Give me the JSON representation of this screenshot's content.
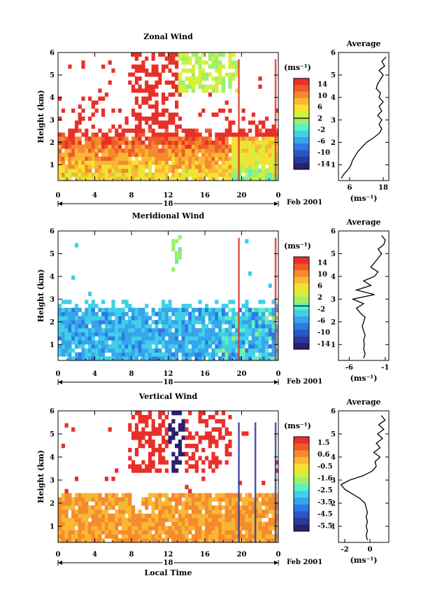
{
  "chart_data": [
    {
      "type": "heatmap",
      "title": "Zonal Wind",
      "xlabel": "",
      "ylabel": "Height (km)",
      "x_ticks": [
        "0",
        "4",
        "8",
        "12",
        "16",
        "20",
        "0"
      ],
      "y_ticks": [
        "1",
        "2",
        "3",
        "4",
        "5",
        "6"
      ],
      "xlim": [
        0,
        24
      ],
      "ylim": [
        0.3,
        6
      ],
      "date_day": "18",
      "date_label": "Feb 2001",
      "colorbar": {
        "unit": "(ms⁻¹)",
        "ticks": [
          "14",
          "10",
          "6",
          "2",
          "-2",
          "-6",
          "-10",
          "-14"
        ],
        "range": [
          -16,
          16
        ],
        "zero_line": 2
      },
      "profile": {
        "title": "Average",
        "xlabel": "(ms⁻¹)",
        "x_ticks": [
          "6",
          "18"
        ],
        "x_tick_values": [
          6,
          18
        ],
        "xlim": [
          2,
          20
        ],
        "y_ticks": [
          "1",
          "2",
          "3",
          "4",
          "5",
          "6"
        ],
        "heights": [
          0.4,
          0.6,
          0.8,
          1.0,
          1.2,
          1.4,
          1.6,
          1.8,
          2.0,
          2.2,
          2.4,
          2.6,
          2.8,
          3.0,
          3.2,
          3.4,
          3.6,
          3.8,
          4.0,
          4.2,
          4.4,
          4.6,
          4.8,
          5.0,
          5.2,
          5.4,
          5.6,
          5.8
        ],
        "values": [
          3.0,
          4.0,
          5.5,
          6.5,
          7.0,
          8.0,
          9.0,
          10.5,
          12.0,
          14.5,
          16.5,
          17.5,
          16.5,
          17.5,
          16.0,
          17.5,
          16.5,
          18.0,
          16.5,
          17.0,
          15.5,
          16.0,
          17.0,
          18.0,
          16.5,
          18.5,
          17.5,
          19.0
        ]
      }
    },
    {
      "type": "heatmap",
      "title": "Meridional Wind",
      "xlabel": "",
      "ylabel": "Height (km)",
      "x_ticks": [
        "0",
        "4",
        "8",
        "12",
        "16",
        "20",
        "0"
      ],
      "y_ticks": [
        "1",
        "2",
        "3",
        "4",
        "5",
        "6"
      ],
      "xlim": [
        0,
        24
      ],
      "ylim": [
        0.3,
        6
      ],
      "date_day": "18",
      "date_label": "Feb 2001",
      "colorbar": {
        "unit": "(ms⁻¹)",
        "ticks": [
          "14",
          "10",
          "6",
          "2",
          "-2",
          "-6",
          "-10",
          "-14"
        ],
        "range": [
          -16,
          16
        ],
        "zero_line": -1
      },
      "profile": {
        "title": "Average",
        "xlabel": "(ms⁻¹)",
        "x_ticks": [
          "-6",
          "-1"
        ],
        "x_tick_values": [
          -6,
          -1
        ],
        "xlim": [
          -7.5,
          -0.5
        ],
        "y_ticks": [
          "1",
          "2",
          "3",
          "4",
          "5",
          "6"
        ],
        "heights": [
          0.4,
          0.6,
          0.8,
          1.0,
          1.2,
          1.4,
          1.6,
          1.8,
          2.0,
          2.2,
          2.4,
          2.6,
          2.8,
          3.0,
          3.2,
          3.4,
          3.6,
          3.8,
          4.0,
          4.2,
          4.4,
          4.6,
          4.8,
          5.0,
          5.2,
          5.4,
          5.6,
          5.8
        ],
        "values": [
          -4.0,
          -3.8,
          -4.0,
          -3.9,
          -4.0,
          -3.8,
          -4.0,
          -4.2,
          -4.0,
          -3.8,
          -4.5,
          -5.0,
          -4.0,
          -5.5,
          -2.5,
          -5.0,
          -3.0,
          -4.0,
          -2.5,
          -2.0,
          -3.0,
          -2.5,
          -2.0,
          -1.5,
          -2.0,
          -1.2,
          -1.0,
          -1.5
        ]
      }
    },
    {
      "type": "heatmap",
      "title": "Vertical Wind",
      "xlabel": "Local Time",
      "ylabel": "Height (km)",
      "x_ticks": [
        "0",
        "4",
        "8",
        "12",
        "16",
        "20",
        "0"
      ],
      "y_ticks": [
        "1",
        "2",
        "3",
        "4",
        "5",
        "6"
      ],
      "xlim": [
        0,
        24
      ],
      "ylim": [
        0.3,
        6
      ],
      "date_day": "18",
      "date_label": "Feb 2001",
      "colorbar": {
        "unit": "(ms⁻¹)",
        "ticks": [
          "1.5",
          "0.6",
          "-0.5",
          "-1.6",
          "-2.5",
          "-3.5",
          "-4.5",
          "-5.5"
        ],
        "range": [
          -6.0,
          2.0
        ],
        "zero_line": null
      },
      "profile": {
        "title": "Average",
        "xlabel": "(ms⁻¹)",
        "x_ticks": [
          "-2",
          "0"
        ],
        "x_tick_values": [
          -2,
          0
        ],
        "xlim": [
          -2.5,
          1.5
        ],
        "y_ticks": [
          "1",
          "2",
          "3",
          "4",
          "5",
          "6"
        ],
        "heights": [
          0.4,
          0.6,
          0.8,
          1.0,
          1.2,
          1.4,
          1.6,
          1.8,
          2.0,
          2.2,
          2.4,
          2.6,
          2.8,
          3.0,
          3.2,
          3.4,
          3.6,
          3.8,
          4.0,
          4.2,
          4.4,
          4.6,
          4.8,
          5.0,
          5.2,
          5.4,
          5.6,
          5.8
        ],
        "values": [
          -0.2,
          -0.3,
          -0.2,
          -0.3,
          -0.2,
          -0.3,
          -0.2,
          -0.3,
          -0.4,
          -0.8,
          -1.4,
          -2.0,
          -2.3,
          -1.6,
          -0.5,
          0.2,
          0.5,
          0.4,
          0.8,
          0.3,
          0.8,
          0.5,
          1.0,
          0.6,
          1.1,
          0.7,
          1.2,
          0.9
        ]
      }
    }
  ]
}
